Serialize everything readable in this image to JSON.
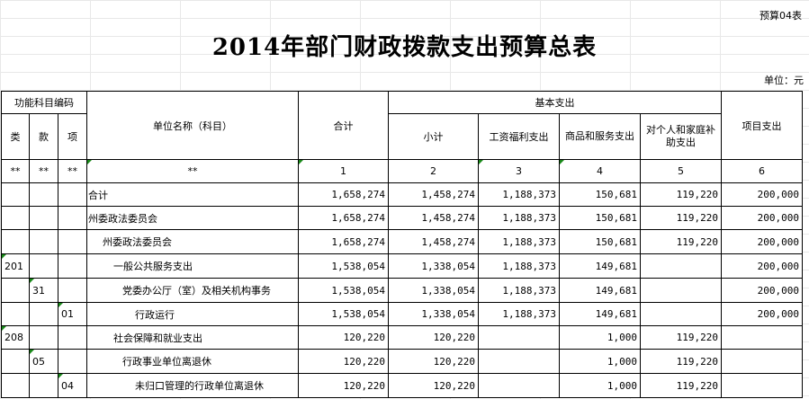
{
  "form_no": "预算04表",
  "title": "2014年部门财政拨款支出预算总表",
  "unit": "单位：元",
  "header": {
    "func_code": "功能科目编码",
    "cat": "类",
    "sec": "款",
    "item": "项",
    "unit_name": "单位名称（科目）",
    "total": "合计",
    "basic": "基本支出",
    "subtotal": "小计",
    "wages": "工资福利支出",
    "goods": "商品和服务支出",
    "subsidy": "对个人和家庭补助支出",
    "project": "项目支出"
  },
  "index_row": [
    "**",
    "**",
    "**",
    "**",
    "1",
    "2",
    "3",
    "4",
    "5",
    "6"
  ],
  "rows": [
    {
      "cat": "",
      "sec": "",
      "item": "",
      "name": "合计",
      "indent": 0,
      "total": "1,658,274",
      "subtotal": "1,458,274",
      "wages": "1,188,373",
      "goods": "150,681",
      "subsidy": "119,220",
      "project": "200,000"
    },
    {
      "cat": "",
      "sec": "",
      "item": "",
      "name": "州委政法委员会",
      "indent": 0,
      "total": "1,658,274",
      "subtotal": "1,458,274",
      "wages": "1,188,373",
      "goods": "150,681",
      "subsidy": "119,220",
      "project": "200,000"
    },
    {
      "cat": "",
      "sec": "",
      "item": "",
      "name": "州委政法委员会",
      "indent": 1,
      "total": "1,658,274",
      "subtotal": "1,458,274",
      "wages": "1,188,373",
      "goods": "150,681",
      "subsidy": "119,220",
      "project": "200,000"
    },
    {
      "cat": "201",
      "sec": "",
      "item": "",
      "name": "一般公共服务支出",
      "indent": 2,
      "total": "1,538,054",
      "subtotal": "1,338,054",
      "wages": "1,188,373",
      "goods": "149,681",
      "subsidy": "",
      "project": "200,000"
    },
    {
      "cat": "",
      "sec": "31",
      "item": "",
      "name": "党委办公厅（室）及相关机构事务",
      "indent": 3,
      "total": "1,538,054",
      "subtotal": "1,338,054",
      "wages": "1,188,373",
      "goods": "149,681",
      "subsidy": "",
      "project": "200,000"
    },
    {
      "cat": "",
      "sec": "",
      "item": "01",
      "name": "行政运行",
      "indent": 4,
      "total": "1,538,054",
      "subtotal": "1,338,054",
      "wages": "1,188,373",
      "goods": "149,681",
      "subsidy": "",
      "project": "200,000"
    },
    {
      "cat": "208",
      "sec": "",
      "item": "",
      "name": "社会保障和就业支出",
      "indent": 2,
      "total": "120,220",
      "subtotal": "120,220",
      "wages": "",
      "goods": "1,000",
      "subsidy": "119,220",
      "project": ""
    },
    {
      "cat": "",
      "sec": "05",
      "item": "",
      "name": "行政事业单位离退休",
      "indent": 3,
      "total": "120,220",
      "subtotal": "120,220",
      "wages": "",
      "goods": "1,000",
      "subsidy": "119,220",
      "project": ""
    },
    {
      "cat": "",
      "sec": "",
      "item": "04",
      "name": "未归口管理的行政单位离退休",
      "indent": 4,
      "total": "120,220",
      "subtotal": "120,220",
      "wages": "",
      "goods": "1,000",
      "subsidy": "119,220",
      "project": ""
    }
  ]
}
